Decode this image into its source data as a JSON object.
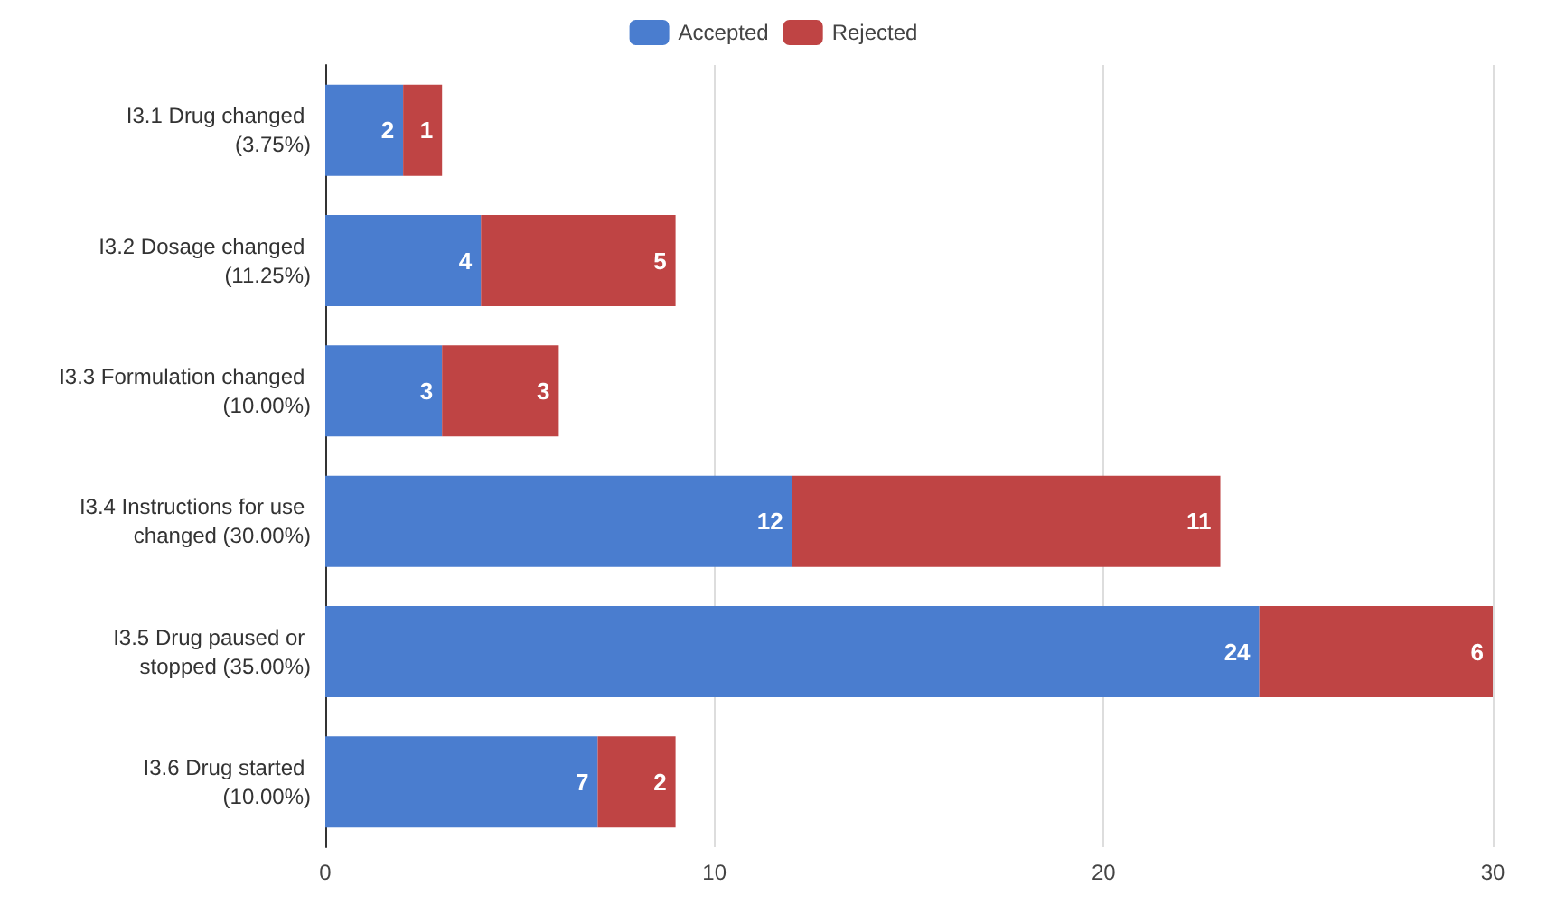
{
  "chart_data": {
    "type": "bar",
    "orientation": "horizontal",
    "stacked": true,
    "categories": [
      "I3.1 Drug changed (3.75%)",
      "I3.2 Dosage changed (11.25%)",
      "I3.3 Formulation changed (10.00%)",
      "I3.4 Instructions for use changed (30.00%)",
      "I3.5 Drug paused or stopped (35.00%)",
      "I3.6 Drug started (10.00%)"
    ],
    "series": [
      {
        "name": "Accepted",
        "color": "#4a7dcf",
        "values": [
          2,
          4,
          3,
          12,
          24,
          7
        ]
      },
      {
        "name": "Rejected",
        "color": "#bf4444",
        "values": [
          1,
          5,
          3,
          11,
          6,
          2
        ]
      }
    ],
    "xlim": [
      0,
      30
    ],
    "xticks": [
      0,
      10,
      20,
      30
    ],
    "grid": "x",
    "legend": "top",
    "data_labels": true
  }
}
